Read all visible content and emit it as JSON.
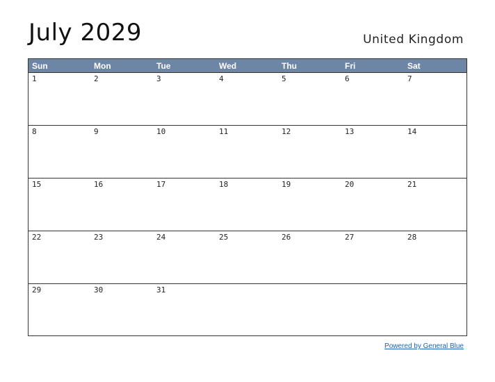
{
  "header": {
    "title": "July 2029",
    "country": "United Kingdom"
  },
  "calendar": {
    "day_names": [
      "Sun",
      "Mon",
      "Tue",
      "Wed",
      "Thu",
      "Fri",
      "Sat"
    ],
    "weeks": [
      [
        "1",
        "2",
        "3",
        "4",
        "5",
        "6",
        "7"
      ],
      [
        "8",
        "9",
        "10",
        "11",
        "12",
        "13",
        "14"
      ],
      [
        "15",
        "16",
        "17",
        "18",
        "19",
        "20",
        "21"
      ],
      [
        "22",
        "23",
        "24",
        "25",
        "26",
        "27",
        "28"
      ],
      [
        "29",
        "30",
        "31",
        "",
        "",
        "",
        ""
      ]
    ],
    "header_color": "#6d86a6"
  },
  "footer": {
    "link_text": "Powered by General Blue",
    "link_color": "#1f5fb4"
  }
}
